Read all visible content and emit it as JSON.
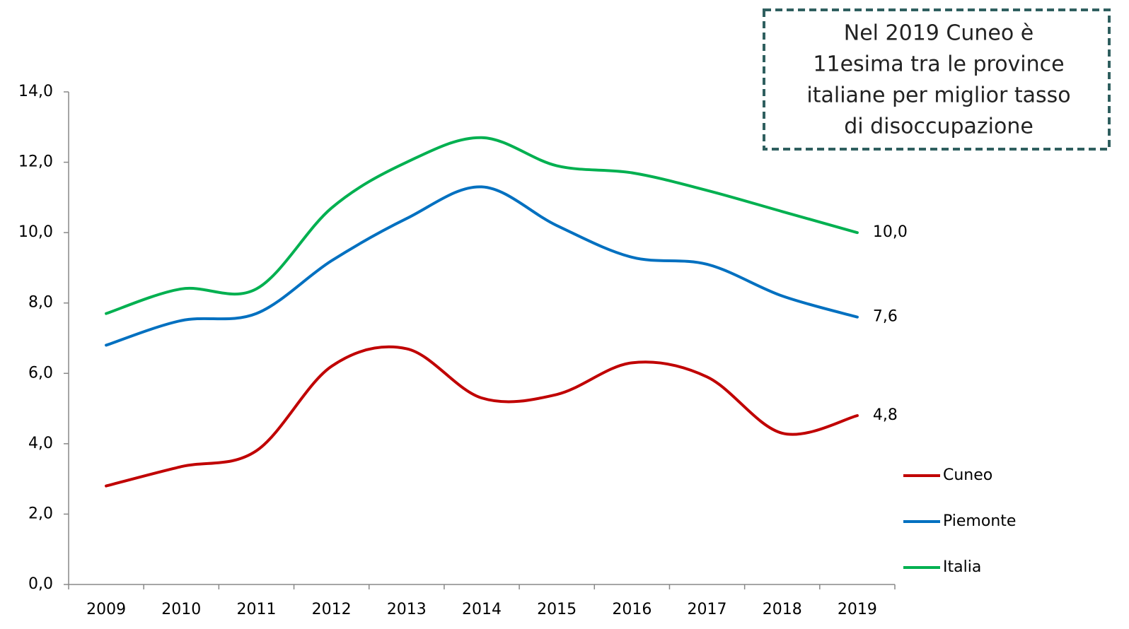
{
  "chart_data": {
    "type": "line",
    "categories": [
      "2009",
      "2010",
      "2011",
      "2012",
      "2013",
      "2014",
      "2015",
      "2016",
      "2017",
      "2018",
      "2019"
    ],
    "series": [
      {
        "name": "Cuneo",
        "color": "#c00000",
        "values": [
          2.8,
          3.35,
          3.8,
          6.2,
          6.7,
          5.3,
          5.4,
          6.3,
          5.9,
          4.3,
          4.8
        ],
        "value_labels": [
          null,
          null,
          null,
          null,
          null,
          null,
          null,
          null,
          null,
          null,
          "4,8"
        ]
      },
      {
        "name": "Piemonte",
        "color": "#0070c0",
        "values": [
          6.8,
          7.5,
          7.7,
          9.2,
          10.4,
          11.3,
          10.2,
          9.3,
          9.1,
          8.2,
          7.6
        ],
        "value_labels": [
          null,
          null,
          null,
          null,
          null,
          null,
          null,
          null,
          null,
          null,
          "7,6"
        ]
      },
      {
        "name": "Italia",
        "color": "#00b050",
        "values": [
          7.7,
          8.4,
          8.4,
          10.7,
          12.0,
          12.7,
          11.9,
          11.7,
          11.2,
          10.6,
          10.0
        ],
        "value_labels": [
          null,
          null,
          null,
          null,
          null,
          null,
          null,
          null,
          null,
          null,
          "10,0"
        ]
      }
    ],
    "ylim": [
      0,
      14
    ],
    "yticks": [
      {
        "value": 0,
        "label": "0,0"
      },
      {
        "value": 2,
        "label": "2,0"
      },
      {
        "value": 4,
        "label": "4,0"
      },
      {
        "value": 6,
        "label": "6,0"
      },
      {
        "value": 8,
        "label": "8,0"
      },
      {
        "value": 10,
        "label": "10,0"
      },
      {
        "value": 12,
        "label": "12,0"
      },
      {
        "value": 14,
        "label": "14,0"
      }
    ],
    "grid": false,
    "legend": "lower right",
    "annotation": [
      "Nel 2019 Cuneo è",
      "11esima tra le province",
      "italiane per miglior tasso",
      "di disoccupazione"
    ]
  }
}
